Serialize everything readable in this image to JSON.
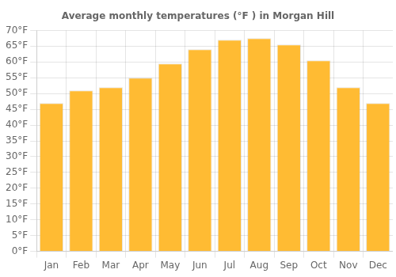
{
  "chart_data": {
    "type": "bar",
    "title": "Average monthly temperatures (°F ) in Morgan Hill",
    "categories": [
      "Jan",
      "Feb",
      "Mar",
      "Apr",
      "May",
      "Jun",
      "Jul",
      "Aug",
      "Sep",
      "Oct",
      "Nov",
      "Dec"
    ],
    "values": [
      47,
      51,
      52,
      55,
      59.5,
      64,
      67,
      67.5,
      65.5,
      60.5,
      52,
      47
    ],
    "color": "#FFBB33",
    "ylim": [
      0,
      70
    ],
    "yticks": [
      {
        "value": 0,
        "label": "0°F"
      },
      {
        "value": 5,
        "label": "5°F"
      },
      {
        "value": 10,
        "label": "10°F"
      },
      {
        "value": 15,
        "label": "15°F"
      },
      {
        "value": 20,
        "label": "20°F"
      },
      {
        "value": 25,
        "label": "25°F"
      },
      {
        "value": 30,
        "label": "30°F"
      },
      {
        "value": 35,
        "label": "35°F"
      },
      {
        "value": 40,
        "label": "40°F"
      },
      {
        "value": 45,
        "label": "45°F"
      },
      {
        "value": 50,
        "label": "50°F"
      },
      {
        "value": 55,
        "label": "55°F"
      },
      {
        "value": 60,
        "label": "60°F"
      },
      {
        "value": 65,
        "label": "65°F"
      },
      {
        "value": 70,
        "label": "70°F"
      }
    ],
    "grid": true
  }
}
